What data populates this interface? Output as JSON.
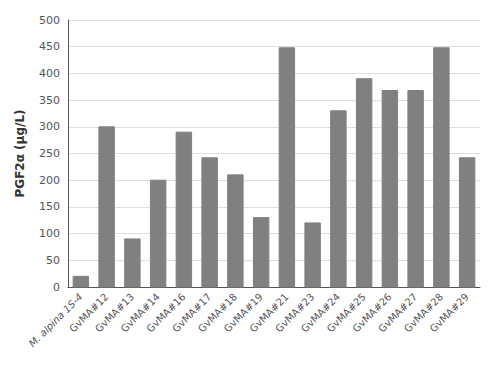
{
  "chart_data": {
    "type": "bar",
    "categories": [
      "M. alpina 1S-4",
      "GvMA#12",
      "GvMA#13",
      "GvMA#14",
      "GvMA#16",
      "GvMA#17",
      "GvMA#18",
      "GvMA#19",
      "GvMA#21",
      "GvMA#23",
      "GvMA#24",
      "GvMA#25",
      "GvMA#26",
      "GvMA#27",
      "GvMA#28",
      "GvMA#29"
    ],
    "values": [
      20,
      300,
      90,
      200,
      290,
      242,
      210,
      130,
      448,
      120,
      330,
      390,
      368,
      368,
      448,
      242
    ],
    "color": "#808080",
    "ylabel": "PGF2α (μg/L)",
    "ylim": [
      0,
      500
    ],
    "yticks": [
      0,
      50,
      100,
      150,
      200,
      250,
      300,
      350,
      400,
      450,
      500
    ],
    "grid": true
  }
}
